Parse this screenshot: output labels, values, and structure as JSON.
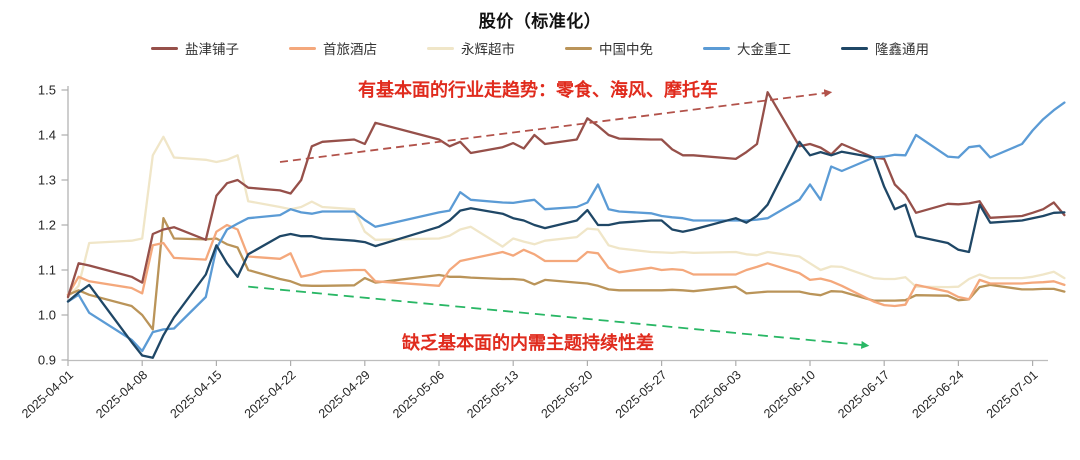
{
  "header": {
    "title": "股价（标准化）"
  },
  "legend": {
    "items": [
      {
        "label": "盐津铺子",
        "color": "#96504A"
      },
      {
        "label": "首旅酒店",
        "color": "#F4A87C"
      },
      {
        "label": "永辉超市",
        "color": "#F0E6C8"
      },
      {
        "label": "中国中免",
        "color": "#BA9459"
      },
      {
        "label": "大金重工",
        "color": "#5B9BD5"
      },
      {
        "label": "隆鑫通用",
        "color": "#1F4766"
      }
    ]
  },
  "annotations": {
    "up_label": "有基本面的行业走趋势：零食、海风、摩托车",
    "down_label": "缺乏基本面的内需主题持续性差",
    "label_color": "#E02B1D"
  },
  "chart_data": {
    "type": "line",
    "title": "股价（标准化）",
    "grid": false,
    "legend_position": "top",
    "x_start_date": "2025-04-01",
    "x_tick_labels": [
      "2025-04-01",
      "2025-04-08",
      "2025-04-15",
      "2025-04-22",
      "2025-04-29",
      "2025-05-06",
      "2025-05-13",
      "2025-05-20",
      "2025-05-27",
      "2025-06-03",
      "2025-06-10",
      "2025-06-17",
      "2025-06-24",
      "2025-07-01"
    ],
    "x_tick_days": [
      0,
      7,
      14,
      21,
      28,
      35,
      42,
      49,
      56,
      63,
      70,
      77,
      84,
      91
    ],
    "y_ticks": [
      "0.9",
      "1.0",
      "1.1",
      "1.2",
      "1.3",
      "1.4",
      "1.5"
    ],
    "y_range": [
      0.9,
      1.5
    ],
    "days": [
      0,
      1,
      2,
      6,
      7,
      8,
      9,
      10,
      13,
      14,
      15,
      16,
      17,
      20,
      21,
      22,
      23,
      24,
      27,
      28,
      29,
      35,
      36,
      37,
      38,
      41,
      42,
      43,
      44,
      45,
      48,
      49,
      50,
      51,
      52,
      55,
      56,
      57,
      58,
      59,
      63,
      64,
      65,
      66,
      69,
      70,
      71,
      72,
      73,
      76,
      77,
      78,
      79,
      80,
      83,
      84,
      85,
      86,
      87,
      90,
      91,
      92,
      93,
      94
    ],
    "series": [
      {
        "name": "盐津铺子",
        "color": "#96504A",
        "values": [
          1.04,
          1.115,
          1.11,
          1.085,
          1.072,
          1.18,
          1.19,
          1.195,
          1.167,
          1.265,
          1.293,
          1.3,
          1.283,
          1.277,
          1.27,
          1.3,
          1.375,
          1.385,
          1.39,
          1.38,
          1.427,
          1.39,
          1.375,
          1.385,
          1.36,
          1.373,
          1.382,
          1.37,
          1.4,
          1.38,
          1.39,
          1.437,
          1.42,
          1.4,
          1.392,
          1.39,
          1.39,
          1.368,
          1.355,
          1.355,
          1.347,
          1.362,
          1.38,
          1.495,
          1.375,
          1.38,
          1.372,
          1.357,
          1.38,
          1.35,
          1.347,
          1.29,
          1.267,
          1.227,
          1.247,
          1.246,
          1.248,
          1.253,
          1.216,
          1.22,
          1.227,
          1.235,
          1.25,
          1.222
        ]
      },
      {
        "name": "首旅酒店",
        "color": "#F4A87C",
        "values": [
          1.045,
          1.085,
          1.075,
          1.06,
          1.048,
          1.155,
          1.16,
          1.127,
          1.123,
          1.185,
          1.2,
          1.19,
          1.13,
          1.125,
          1.137,
          1.085,
          1.09,
          1.097,
          1.1,
          1.1,
          1.075,
          1.065,
          1.1,
          1.12,
          1.125,
          1.14,
          1.132,
          1.145,
          1.135,
          1.12,
          1.12,
          1.14,
          1.137,
          1.105,
          1.095,
          1.105,
          1.1,
          1.102,
          1.1,
          1.09,
          1.09,
          1.1,
          1.107,
          1.115,
          1.093,
          1.078,
          1.081,
          1.075,
          1.065,
          1.03,
          1.022,
          1.02,
          1.023,
          1.067,
          1.052,
          1.04,
          1.035,
          1.078,
          1.07,
          1.07,
          1.072,
          1.073,
          1.075,
          1.067
        ]
      },
      {
        "name": "永辉超市",
        "color": "#F0E6C8",
        "values": [
          1.04,
          1.065,
          1.16,
          1.165,
          1.17,
          1.355,
          1.396,
          1.35,
          1.345,
          1.34,
          1.345,
          1.355,
          1.253,
          1.24,
          1.235,
          1.24,
          1.252,
          1.24,
          1.235,
          1.185,
          1.167,
          1.17,
          1.176,
          1.19,
          1.196,
          1.152,
          1.17,
          1.163,
          1.157,
          1.165,
          1.173,
          1.192,
          1.19,
          1.155,
          1.148,
          1.14,
          1.139,
          1.138,
          1.14,
          1.138,
          1.14,
          1.135,
          1.133,
          1.14,
          1.13,
          1.115,
          1.1,
          1.108,
          1.107,
          1.082,
          1.08,
          1.08,
          1.084,
          1.063,
          1.062,
          1.063,
          1.08,
          1.09,
          1.082,
          1.082,
          1.085,
          1.09,
          1.096,
          1.082
        ]
      },
      {
        "name": "中国中免",
        "color": "#BA9459",
        "values": [
          1.045,
          1.055,
          1.045,
          1.02,
          1.0,
          0.968,
          1.215,
          1.17,
          1.168,
          1.17,
          1.157,
          1.15,
          1.1,
          1.08,
          1.075,
          1.066,
          1.065,
          1.065,
          1.066,
          1.082,
          1.072,
          1.089,
          1.085,
          1.085,
          1.083,
          1.08,
          1.08,
          1.078,
          1.068,
          1.078,
          1.072,
          1.07,
          1.065,
          1.057,
          1.055,
          1.055,
          1.055,
          1.056,
          1.055,
          1.053,
          1.063,
          1.048,
          1.05,
          1.052,
          1.052,
          1.047,
          1.044,
          1.053,
          1.052,
          1.032,
          1.032,
          1.032,
          1.033,
          1.044,
          1.043,
          1.033,
          1.035,
          1.062,
          1.067,
          1.057,
          1.057,
          1.058,
          1.058,
          1.052
        ]
      },
      {
        "name": "大金重工",
        "color": "#5B9BD5",
        "values": [
          1.03,
          1.045,
          1.005,
          0.945,
          0.92,
          0.962,
          0.968,
          0.97,
          1.04,
          1.148,
          1.19,
          1.203,
          1.215,
          1.222,
          1.235,
          1.228,
          1.225,
          1.23,
          1.23,
          1.211,
          1.196,
          1.228,
          1.232,
          1.273,
          1.256,
          1.25,
          1.249,
          1.253,
          1.256,
          1.235,
          1.24,
          1.25,
          1.29,
          1.235,
          1.23,
          1.226,
          1.22,
          1.217,
          1.215,
          1.21,
          1.21,
          1.21,
          1.212,
          1.215,
          1.256,
          1.29,
          1.256,
          1.33,
          1.32,
          1.35,
          1.352,
          1.356,
          1.355,
          1.4,
          1.352,
          1.35,
          1.373,
          1.376,
          1.35,
          1.38,
          1.41,
          1.435,
          1.455,
          1.472
        ]
      },
      {
        "name": "隆鑫通用",
        "color": "#1F4766",
        "values": [
          1.03,
          1.05,
          1.067,
          0.94,
          0.91,
          0.905,
          0.955,
          0.995,
          1.09,
          1.155,
          1.115,
          1.085,
          1.135,
          1.175,
          1.18,
          1.175,
          1.175,
          1.17,
          1.165,
          1.162,
          1.153,
          1.196,
          1.21,
          1.232,
          1.237,
          1.225,
          1.215,
          1.21,
          1.2,
          1.193,
          1.21,
          1.233,
          1.2,
          1.2,
          1.205,
          1.21,
          1.21,
          1.19,
          1.185,
          1.19,
          1.215,
          1.205,
          1.22,
          1.245,
          1.385,
          1.355,
          1.362,
          1.355,
          1.363,
          1.35,
          1.285,
          1.235,
          1.245,
          1.175,
          1.16,
          1.145,
          1.14,
          1.245,
          1.205,
          1.21,
          1.215,
          1.22,
          1.227,
          1.228
        ]
      }
    ],
    "trend_arrows": [
      {
        "name": "uptrend-arrow",
        "style": "dashed",
        "color": "#B2524A",
        "from": [
          20,
          1.34
        ],
        "to": [
          72,
          1.495
        ]
      },
      {
        "name": "downtrend-arrow",
        "style": "dashed",
        "color": "#29B765",
        "from": [
          17,
          1.063
        ],
        "to": [
          75.5,
          0.932
        ]
      }
    ]
  }
}
